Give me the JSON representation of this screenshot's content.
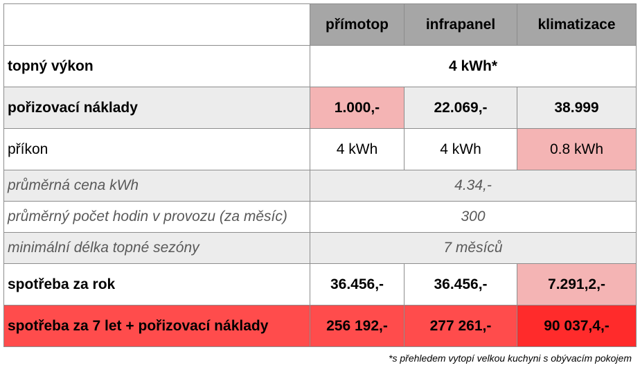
{
  "columns": [
    "přímotop",
    "infrapanel",
    "klimatizace"
  ],
  "rows": {
    "heat": {
      "label": "topný výkon",
      "value": "4 kWh*"
    },
    "purchase": {
      "label": "pořizovací náklady",
      "values": [
        "1.000,-",
        "22.069,-",
        "38.999"
      ]
    },
    "input": {
      "label": "příkon",
      "values": [
        "4 kWh",
        "4 kWh",
        "0.8 kWh"
      ]
    },
    "price": {
      "label": "průměrná cena kWh",
      "value": "4.34,-"
    },
    "hours": {
      "label": "průměrný počet hodin v provozu (za měsíc)",
      "value": "300"
    },
    "season": {
      "label": "minimální délka topné sezóny",
      "value": "7 měsíců"
    },
    "year": {
      "label": "spotřeba za rok",
      "values": [
        "36.456,-",
        "36.456,-",
        "7.291,2,-"
      ]
    },
    "seven": {
      "label": "spotřeba za 7 let + pořizovací náklady",
      "values": [
        "256 192,-",
        "277 261,-",
        "90 037,4,-"
      ]
    }
  },
  "footnote": "*s přehledem vytopí velkou kuchyni s obývacím pokojem",
  "colors": {
    "header": "#a6a6a6",
    "highlight": "#f4b4b4",
    "total": "#ff4c4c",
    "total_best": "#ff2b2b",
    "stripe": "#ececec"
  }
}
